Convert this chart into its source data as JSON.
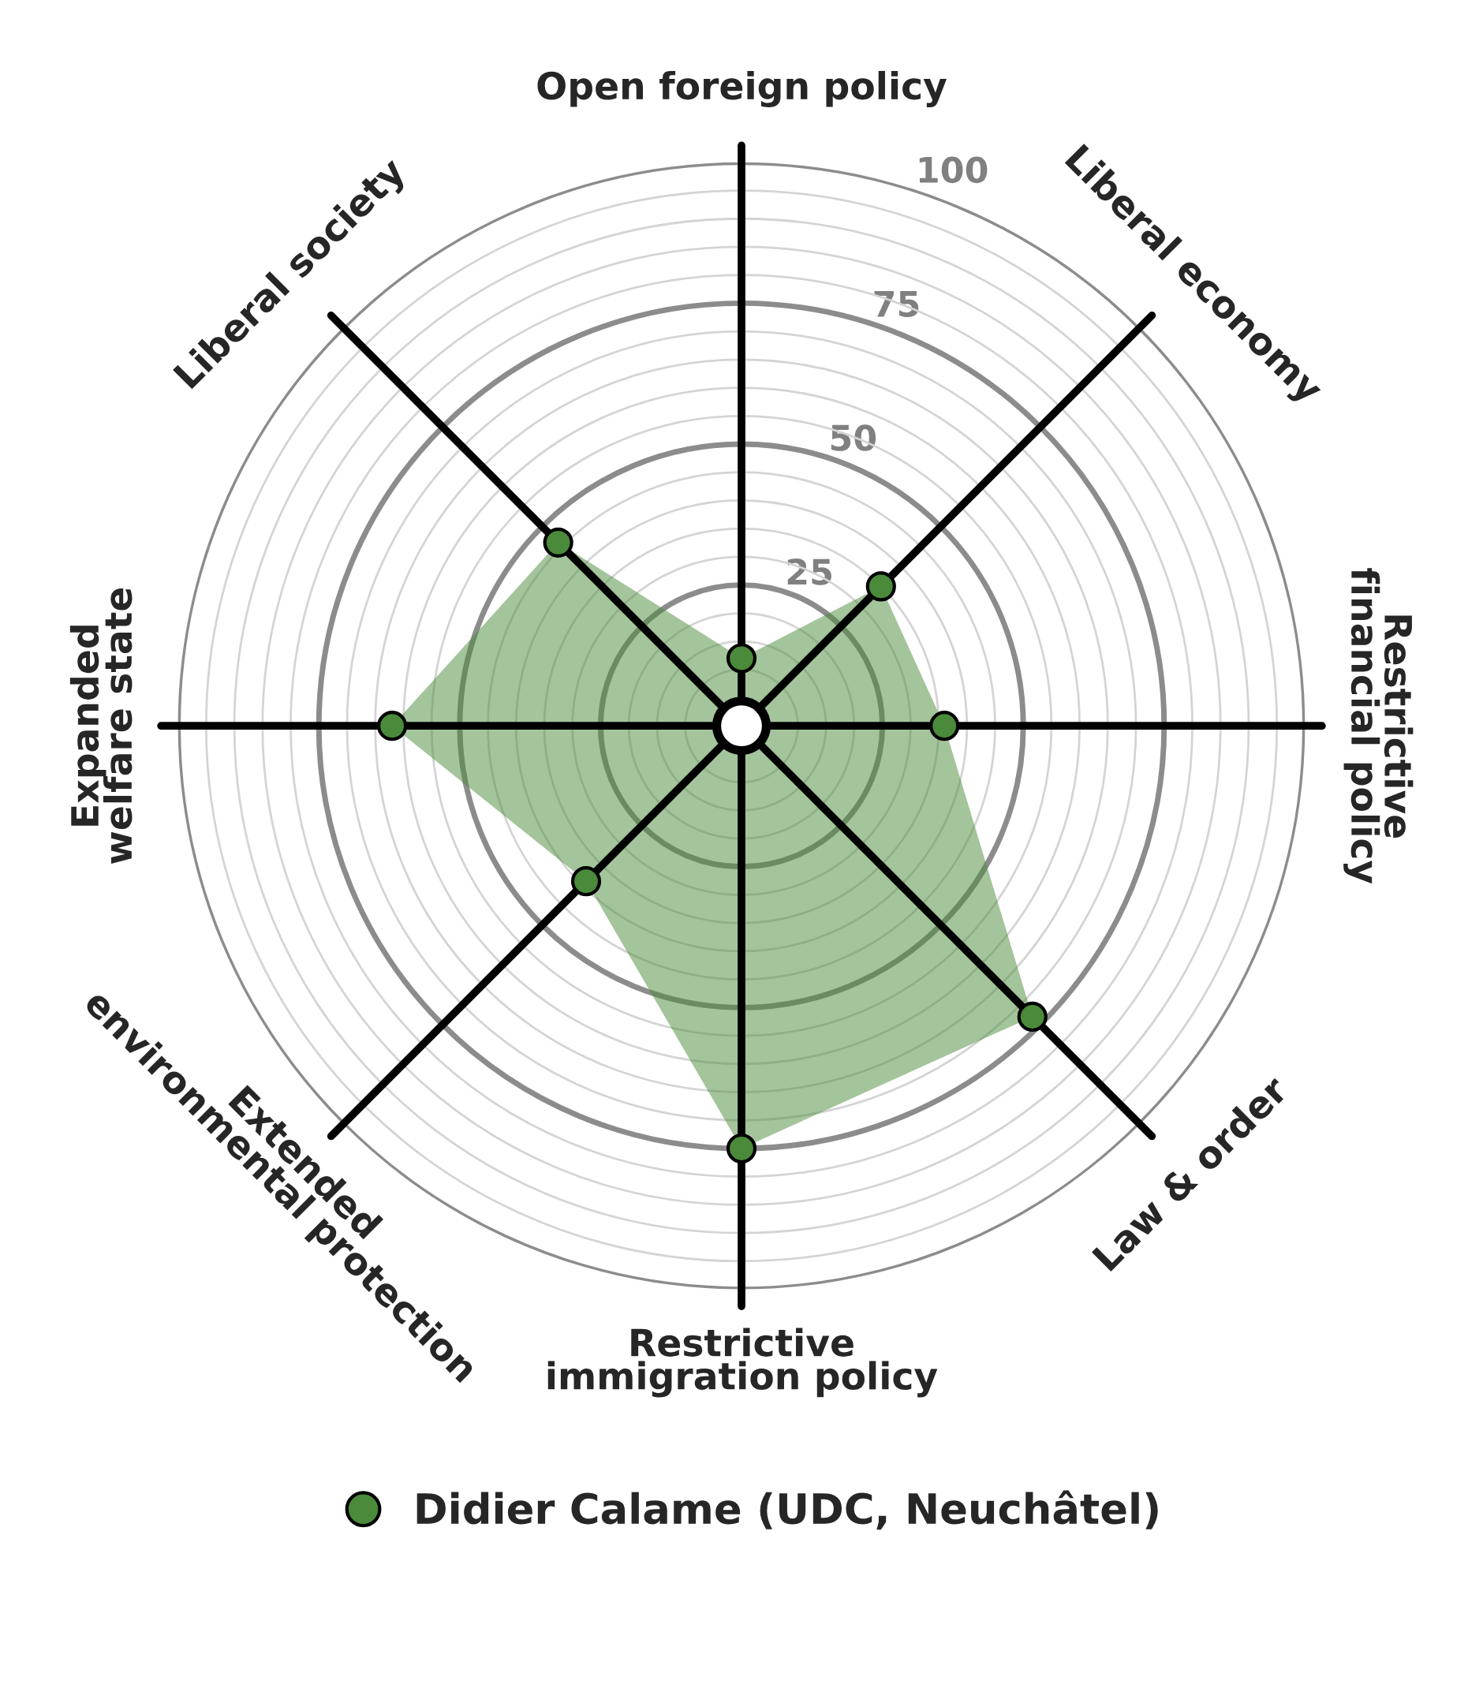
{
  "chart_data": {
    "type": "radar",
    "categories": [
      "Open foreign policy",
      "Liberal economy",
      "Restrictive\nfinancial policy",
      "Law & order",
      "Restrictive\nimmigration policy",
      "Extended\nenvironmental protection",
      "Expanded\nwelfare state",
      "Liberal society"
    ],
    "series": [
      {
        "name": "Didier Calame (UDC, Neuchâtel)",
        "color": "#4a8a3a",
        "values": [
          12,
          35,
          36,
          73,
          75,
          39,
          62,
          46
        ]
      }
    ],
    "ylim": [
      0,
      100
    ],
    "yticks": [
      25,
      50,
      75,
      100
    ],
    "grid": true,
    "marker": "circle",
    "legend": "bottom"
  }
}
